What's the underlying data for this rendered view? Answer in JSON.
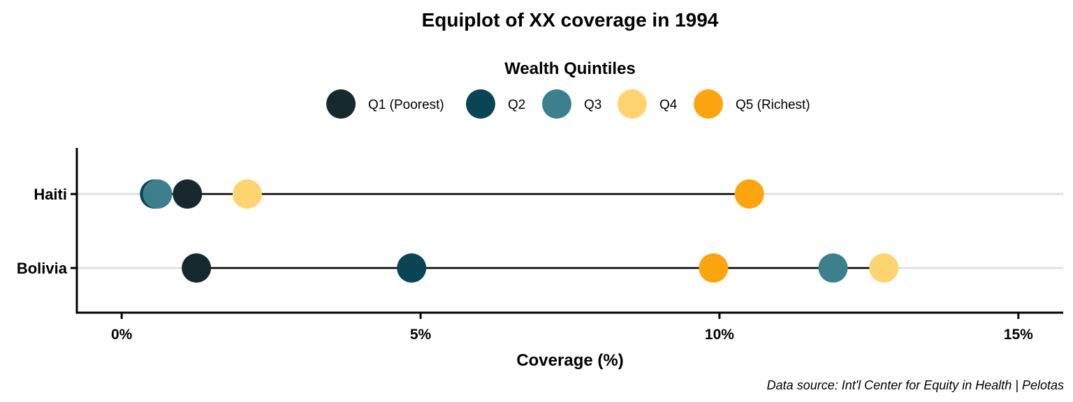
{
  "chart_data": {
    "type": "scatter",
    "subtype": "dumbbell",
    "title": "Equiplot of XX coverage in 1994",
    "legend_title": "Wealth Quintiles",
    "legend_position": "top",
    "xlabel": "Coverage (%)",
    "ylabel": "",
    "xlim": [
      -0.75,
      15.75
    ],
    "xticks": [
      0,
      5,
      10,
      15
    ],
    "xtick_labels": [
      "0%",
      "5%",
      "10%",
      "15%"
    ],
    "grid": "horizontal",
    "caption": "Data source: Int'l Center for Equity in Health | Pelotas",
    "categories": [
      "Haiti",
      "Bolivia"
    ],
    "series": [
      {
        "name": "Q1 (Poorest)",
        "color": "#17282e",
        "values": [
          1.1,
          1.25
        ]
      },
      {
        "name": "Q2",
        "color": "#0b4455",
        "values": [
          0.55,
          4.85
        ]
      },
      {
        "name": "Q3",
        "color": "#3b808c",
        "values": [
          0.6,
          11.9
        ]
      },
      {
        "name": "Q4",
        "color": "#fdd470",
        "values": [
          2.1,
          12.75
        ]
      },
      {
        "name": "Q5 (Richest)",
        "color": "#fca50f",
        "values": [
          10.5,
          9.9
        ]
      }
    ]
  }
}
